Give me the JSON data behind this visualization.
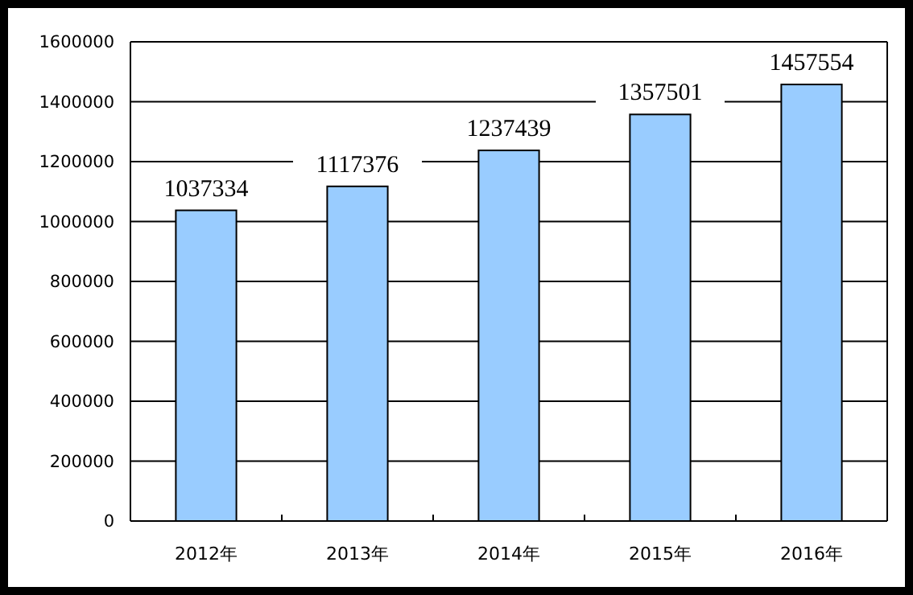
{
  "chart_data": {
    "type": "bar",
    "categories": [
      "2012年",
      "2013年",
      "2014年",
      "2015年",
      "2016年"
    ],
    "values": [
      1037334,
      1117376,
      1237439,
      1357501,
      1457554
    ],
    "color": "#99ccff",
    "ylim": [
      0,
      1600000
    ],
    "yticks": [
      0,
      200000,
      400000,
      600000,
      800000,
      1000000,
      1200000,
      1400000,
      1600000
    ],
    "grid": "y",
    "data_labels": true
  }
}
